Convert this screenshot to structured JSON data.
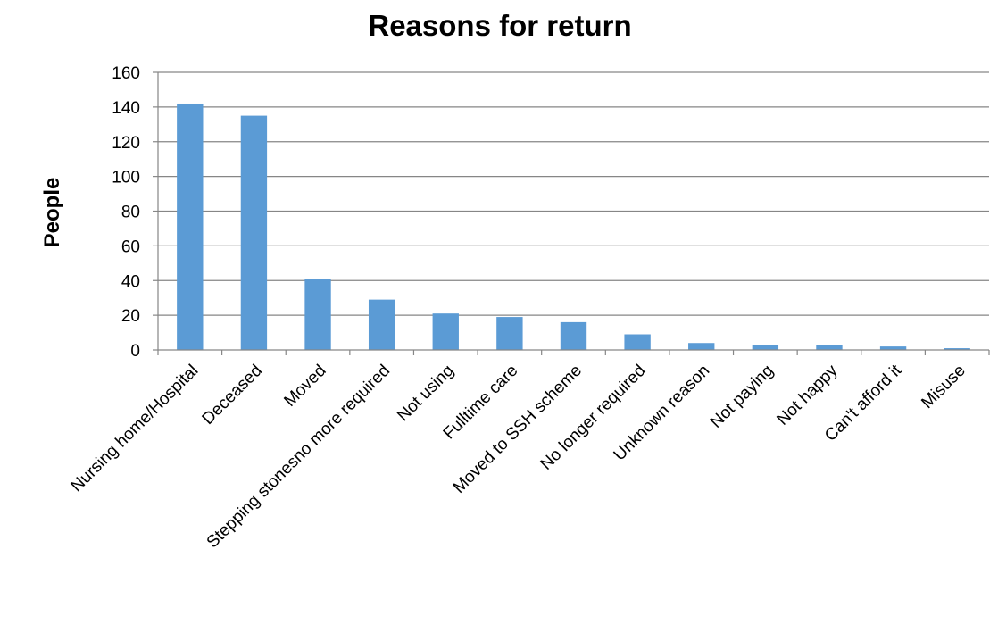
{
  "chart_data": {
    "type": "bar",
    "title": "Reasons for return",
    "xlabel": "",
    "ylabel": "People",
    "ylim": [
      0,
      160
    ],
    "yticks": [
      0,
      20,
      40,
      60,
      80,
      100,
      120,
      140,
      160
    ],
    "grid": true,
    "legend": "none",
    "bar_color": "#5b9bd5",
    "categories": [
      "Nursing home/Hospital",
      "Deceased",
      "Moved",
      "Stepping stonesno more required",
      "Not using",
      "Fulltime care",
      "Moved to SSH scheme",
      "No longer required",
      "Unknown reason",
      "Not paying",
      "Not happy",
      "Can't afford it",
      "Misuse"
    ],
    "values": [
      142,
      135,
      41,
      29,
      21,
      19,
      16,
      9,
      4,
      3,
      3,
      2,
      1
    ]
  }
}
